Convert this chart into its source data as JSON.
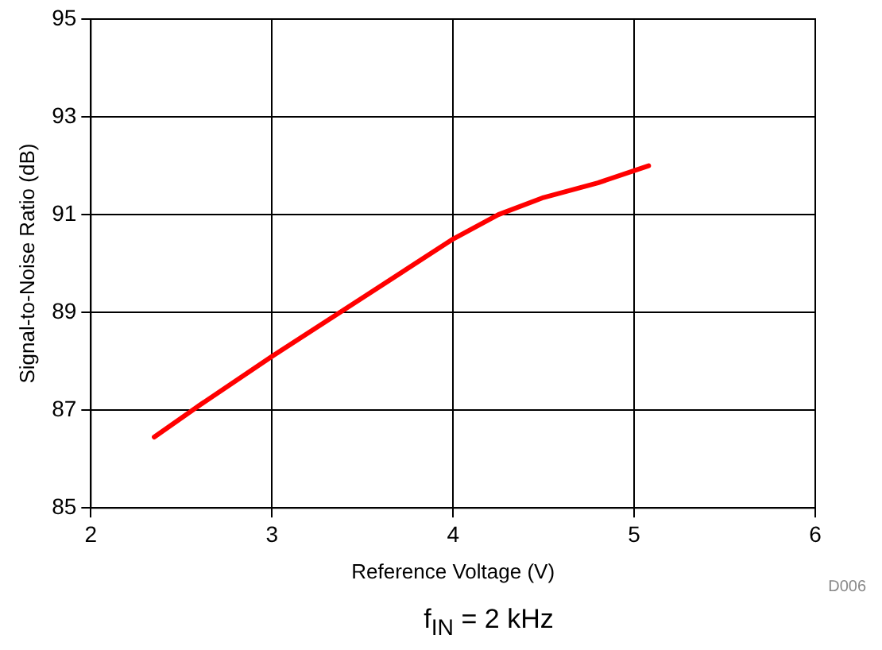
{
  "chart_data": {
    "type": "line",
    "xlabel": "Reference Voltage (V)",
    "ylabel": "Signal-to-Noise Ratio (dB)",
    "x": [
      2.35,
      2.6,
      3.0,
      3.5,
      4.0,
      4.25,
      4.5,
      4.8,
      5.08
    ],
    "series": [
      {
        "color": "#ff0000",
        "values": [
          86.45,
          87.1,
          88.1,
          89.3,
          90.5,
          91.0,
          91.35,
          91.65,
          92.0
        ]
      }
    ],
    "xlim": [
      2,
      6
    ],
    "xticks": [
      2,
      3,
      4,
      5,
      6
    ],
    "ylim": [
      85,
      95
    ],
    "yticks": [
      85,
      87,
      89,
      91,
      93,
      95
    ],
    "grid": true,
    "legend": false,
    "marker": "none",
    "line_style": "solid",
    "annotations": [
      "D006",
      "f$_{IN}$ = 2 kHz"
    ]
  }
}
